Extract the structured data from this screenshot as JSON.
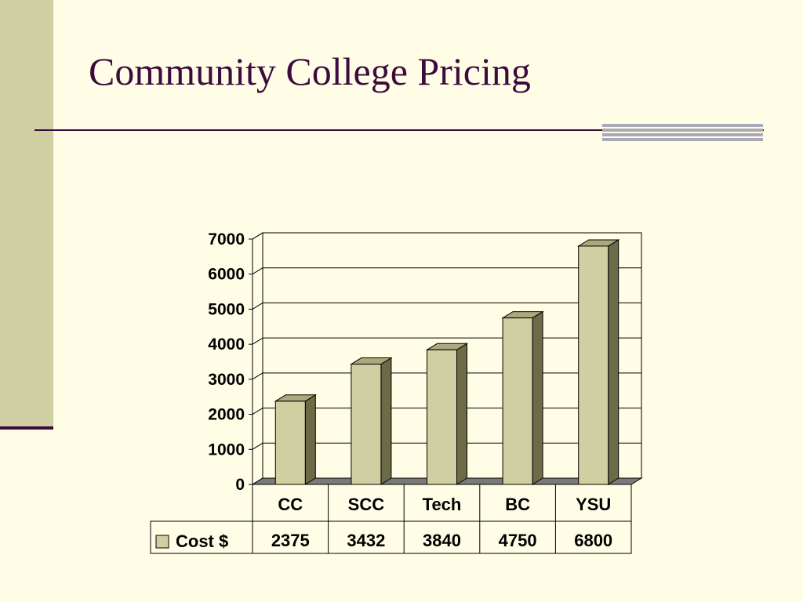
{
  "slide": {
    "title": "Community College Pricing"
  },
  "colors": {
    "title": "#3d0a3d",
    "left_bar": "#cfcfa2",
    "bar_front": "#cfcfa2",
    "bar_side": "#6b6b47",
    "bar_top": "#a9a97c",
    "background": "#fffde6"
  },
  "chart_data": {
    "type": "bar",
    "title": "",
    "xlabel": "",
    "ylabel": "",
    "categories": [
      "CC",
      "SCC",
      "Tech",
      "BC",
      "YSU"
    ],
    "series": [
      {
        "name": "Cost $",
        "values": [
          2375,
          3432,
          3840,
          4750,
          6800
        ]
      }
    ],
    "table_values": [
      "2375",
      "3432",
      "3840",
      "4750",
      "6800"
    ],
    "ylim": [
      0,
      7000
    ],
    "yticks": [
      0,
      1000,
      2000,
      3000,
      4000,
      5000,
      6000,
      7000
    ],
    "grid": true,
    "style": "3d-column",
    "data_table": true
  }
}
